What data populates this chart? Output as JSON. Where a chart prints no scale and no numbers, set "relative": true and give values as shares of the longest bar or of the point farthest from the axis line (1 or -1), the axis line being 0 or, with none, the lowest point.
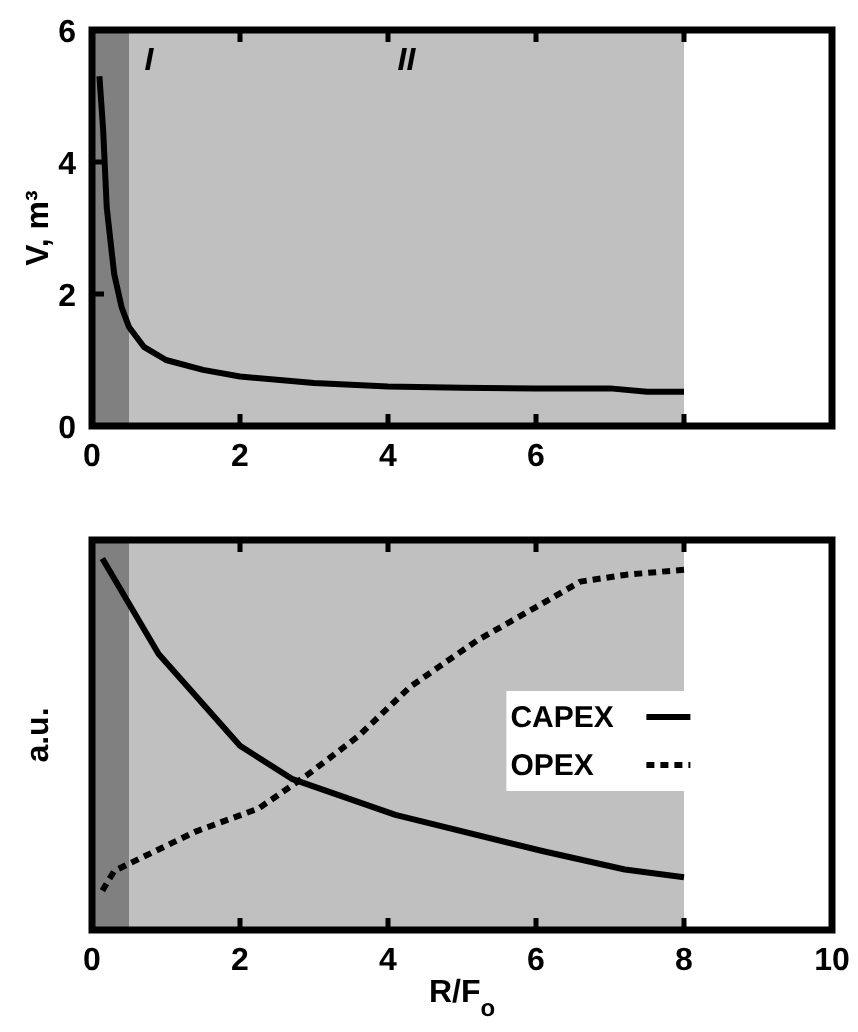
{
  "chart_data": [
    {
      "type": "line",
      "ylabel": "V, m³",
      "xlim": [
        0,
        10
      ],
      "ylim": [
        0,
        6
      ],
      "xticks": [
        0,
        2,
        4,
        6,
        {
          "value": 8,
          "label": null
        }
      ],
      "yticks": [
        0,
        2,
        4,
        6
      ],
      "marker": "none",
      "legend": false,
      "grid": false,
      "bands": [
        {
          "axis": "x",
          "from": 0,
          "to": 0.5,
          "label": "I",
          "color": "#808080"
        },
        {
          "axis": "x",
          "from": 0.5,
          "to": 8,
          "label": "II",
          "color": "#c0c0c0"
        }
      ],
      "series": [
        {
          "color": "#000000",
          "line_style": "solid",
          "x": [
            0.1,
            0.15,
            0.2,
            0.3,
            0.4,
            0.5,
            0.7,
            1,
            1.5,
            2,
            3,
            4,
            5,
            6,
            7,
            7.5,
            8
          ],
          "values": [
            5.3,
            4.5,
            3.3,
            2.3,
            1.8,
            1.5,
            1.2,
            1.0,
            0.85,
            0.75,
            0.65,
            0.6,
            0.58,
            0.57,
            0.57,
            0.52,
            0.52
          ]
        }
      ]
    },
    {
      "type": "line",
      "ylabel": "a.u.",
      "xlabel": "R/F$_{o}$",
      "relative": true,
      "xlim": [
        0,
        10
      ],
      "xticks": [
        0,
        2,
        4,
        6,
        8,
        10
      ],
      "tick_labels": "x",
      "marker": "none",
      "legend": "right",
      "grid": false,
      "bands": [
        {
          "axis": "x",
          "from": 0,
          "to": 0.5,
          "color": "#808080"
        },
        {
          "axis": "x",
          "from": 0.5,
          "to": 8,
          "color": "#c0c0c0"
        }
      ],
      "series": [
        {
          "name": "CAPEX",
          "color": "#000000",
          "line_style": "solid",
          "x": [
            0.14,
            0.9,
            2,
            2.7,
            4.1,
            6.1,
            7.2,
            8
          ],
          "values": [
            1.0,
            0.743,
            0.496,
            0.407,
            0.31,
            0.212,
            0.163,
            0.142
          ]
        },
        {
          "name": "OPEX",
          "color": "#000000",
          "line_style": "dashed",
          "x": [
            0.14,
            0.3,
            1.4,
            2.25,
            2.9,
            3.6,
            4.3,
            5.2,
            5.9,
            6.6,
            7.2,
            8
          ],
          "values": [
            0.106,
            0.159,
            0.265,
            0.327,
            0.416,
            0.522,
            0.655,
            0.779,
            0.858,
            0.938,
            0.956,
            0.97
          ]
        }
      ]
    }
  ]
}
